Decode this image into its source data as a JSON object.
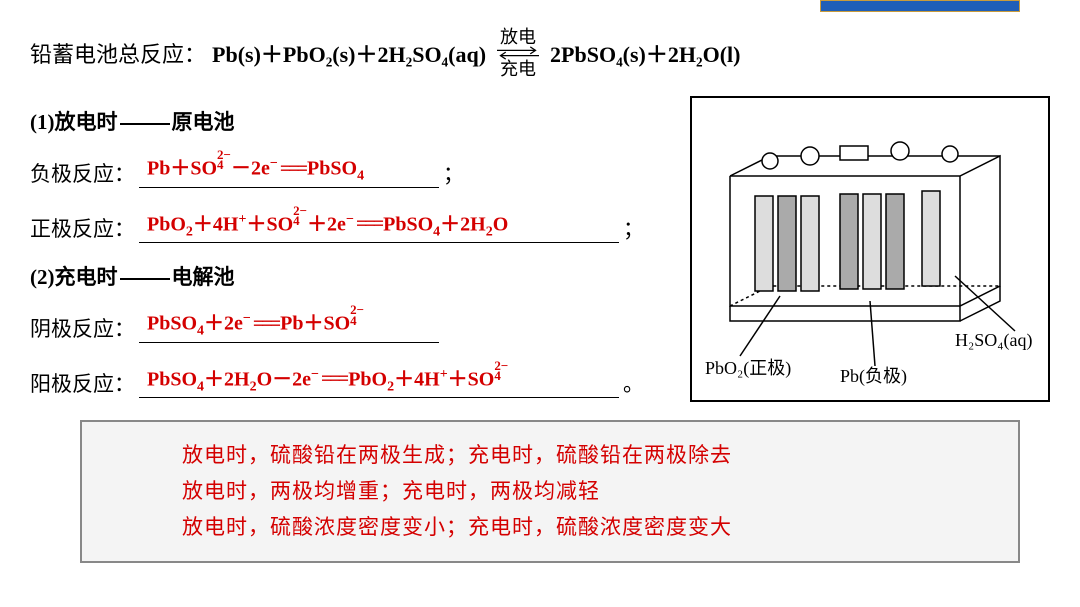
{
  "colors": {
    "answer_color": "#d40000",
    "badge_bg": "#1e5eb8",
    "badge_border": "#c89b3c",
    "box_bg": "#f4f4f4",
    "box_border": "#888888"
  },
  "header": {
    "label": "铅蓄电池总反应：",
    "lhs": "Pb(s)＋PbO₂(s)＋2H₂SO₄(aq)",
    "arrow_top": "放电",
    "arrow_bottom": "充电",
    "rhs": "2PbSO₄(s)＋2H₂O(l)"
  },
  "section1": {
    "title_prefix": "(1)放电时",
    "title_suffix": "原电池",
    "neg_label": "负极反应：",
    "neg_answer_html": "Pb＋SO<span class='charge'><span class='t'>2−</span><span class='t'>4</span></span>－2e<sup>−</sup><span class='eqsign'>===</span>PbSO<sub>4</sub>",
    "neg_punct": "；",
    "pos_label": "正极反应：",
    "pos_answer_html": "PbO<sub>2</sub>＋4H<sup>+</sup>＋SO<span class='charge'><span class='t'>2−</span><span class='t'>4</span></span>＋2e<sup>−</sup><span class='eqsign'>===</span>PbSO<sub>4</sub>＋2H<sub>2</sub>O",
    "pos_punct": "；"
  },
  "section2": {
    "title_prefix": "(2)充电时",
    "title_suffix": "电解池",
    "cath_label": "阴极反应：",
    "cath_answer_html": "PbSO<sub>4</sub>＋2e<sup>−</sup><span class='eqsign'>===</span>Pb＋SO<span class='charge'><span class='t'>2−</span><span class='t'>4</span></span>",
    "anod_label": "阳极反应：",
    "anod_answer_html": "PbSO<sub>4</sub>＋2H<sub>2</sub>O－2e<sup>−</sup><span class='eqsign'>===</span>PbO<sub>2</sub>＋4H<sup>+</sup>＋SO<span class='charge'><span class='t'>2−</span><span class='t'>4</span></span>",
    "anod_punct": "。"
  },
  "diagram": {
    "label_pbo2": "PbO₂(正极)",
    "label_pb": "Pb(负极)",
    "label_h2so4": "H₂SO₄(aq)"
  },
  "summary": {
    "line1": "放电时，硫酸铅在两极生成；充电时，硫酸铅在两极除去",
    "line2": "放电时，两极均增重；充电时，两极均减轻",
    "line3": "放电时，硫酸浓度密度变小；充电时，硫酸浓度密度变大"
  }
}
